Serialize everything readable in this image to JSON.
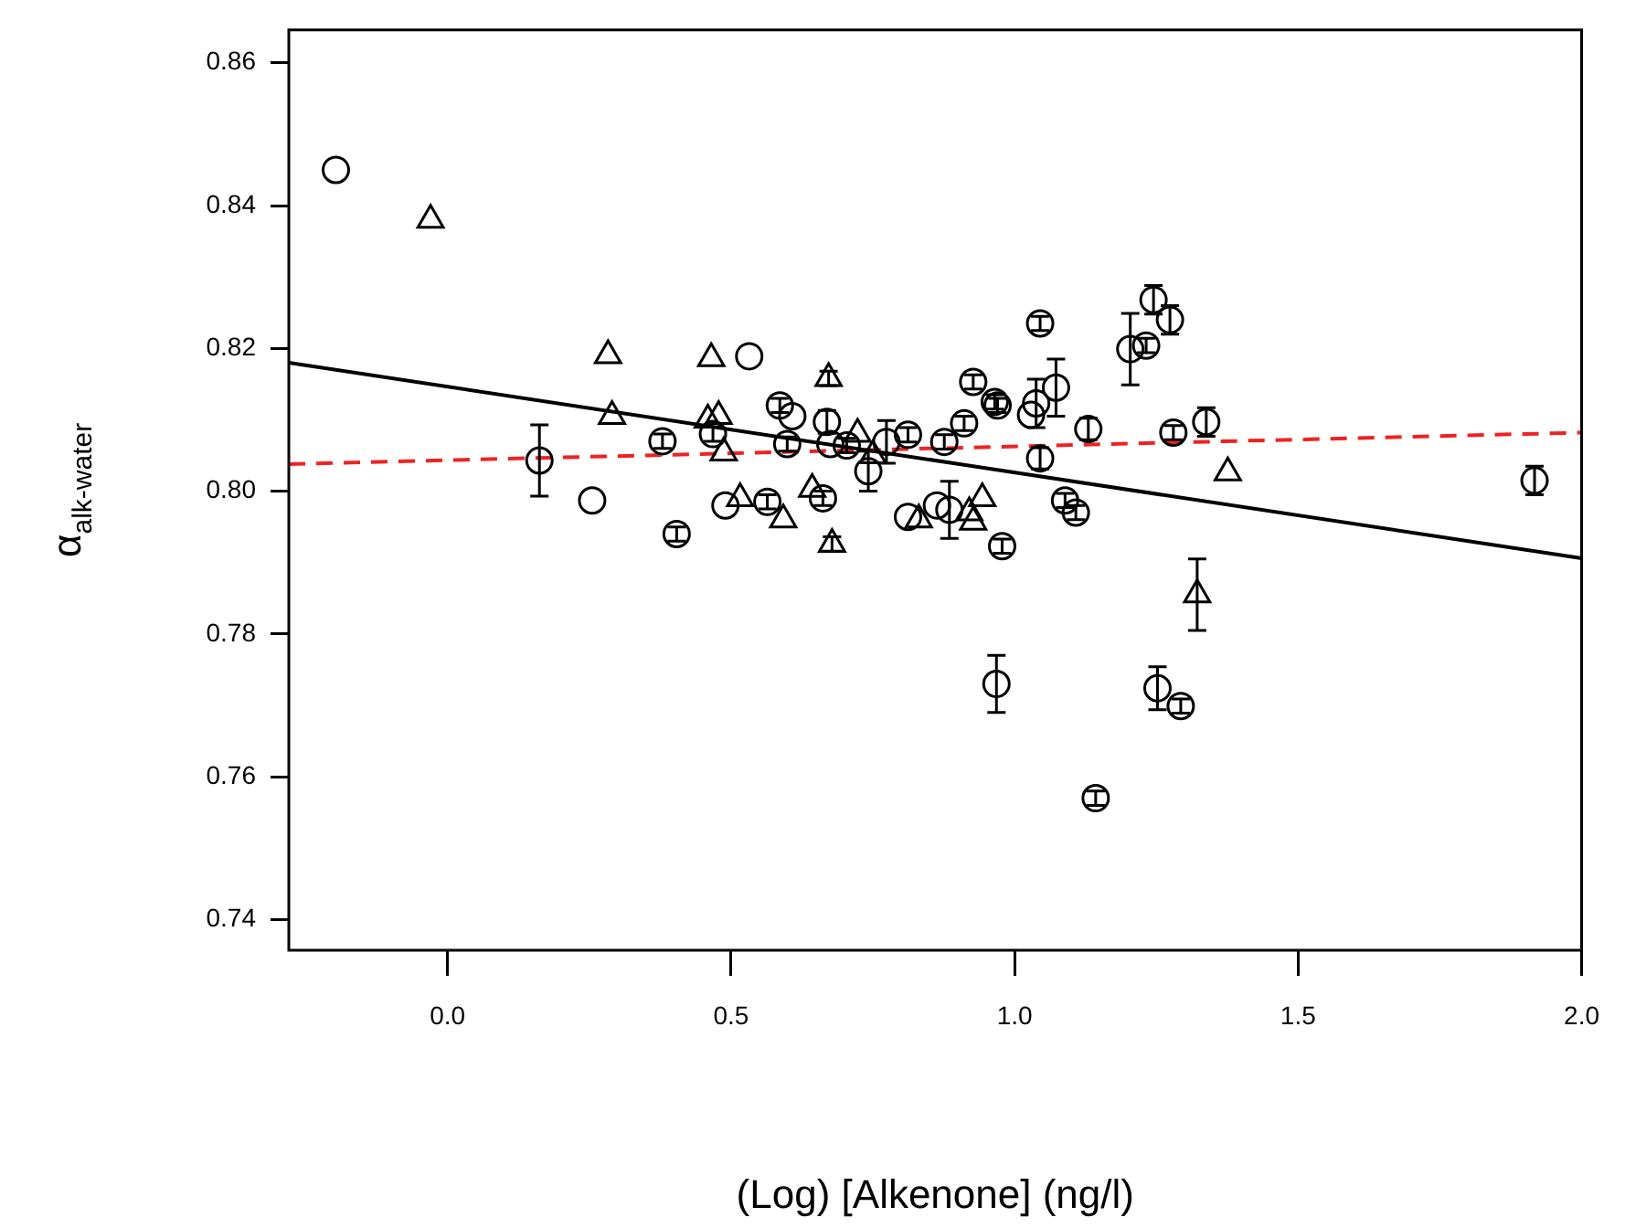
{
  "chart_data": {
    "type": "scatter",
    "xlabel": "(Log) [Alkenone] (ng/l)",
    "ylabel": "α$_{alk-water}$",
    "xlim": [
      -0.28,
      2.0
    ],
    "ylim": [
      0.7357,
      0.8646
    ],
    "xticks": [
      {
        "value": 0,
        "label": "0.0"
      },
      {
        "value": 0.5,
        "label": "0.5"
      },
      {
        "value": 1,
        "label": "1.0"
      },
      {
        "value": 1.5,
        "label": "1.5"
      },
      {
        "value": 2,
        "label": "2.0"
      }
    ],
    "yticks": [
      0.74,
      0.76,
      0.78,
      {
        "value": 0.8,
        "label": "0.80"
      },
      0.82,
      0.84,
      0.86
    ],
    "grid": false,
    "legend": false,
    "series": [
      {
        "type": "scatter",
        "marker": "circle",
        "color": "#000000",
        "x": [
          -0.197,
          0.162,
          0.255,
          0.379,
          0.404,
          0.532,
          0.468,
          0.49,
          0.564,
          0.586,
          0.608,
          0.599,
          0.662,
          0.669,
          0.675,
          0.704,
          0.742,
          0.774,
          0.812,
          0.876,
          0.911,
          0.927,
          0.965,
          0.97,
          1.045,
          1.038,
          1.029,
          1.073,
          1.13,
          1.204,
          1.045,
          0.812,
          0.863,
          0.885,
          0.978,
          1.089,
          1.108,
          1.245,
          1.274,
          1.232,
          1.28,
          1.338,
          0.968,
          1.252,
          1.293,
          1.143,
          1.917
        ],
        "values": [
          0.845,
          0.8043,
          0.7987,
          0.807,
          0.794,
          0.8189,
          0.808,
          0.798,
          0.7985,
          0.812,
          0.8105,
          0.8066,
          0.799,
          0.8097,
          0.8066,
          0.8064,
          0.8028,
          0.8069,
          0.8079,
          0.8069,
          0.8095,
          0.8153,
          0.8125,
          0.812,
          0.8235,
          0.8123,
          0.8107,
          0.8145,
          0.8087,
          0.8199,
          0.8046,
          0.7964,
          0.798,
          0.7974,
          0.7923,
          0.7987,
          0.797,
          0.8268,
          0.824,
          0.8204,
          0.8082,
          0.8097,
          0.773,
          0.7724,
          0.7699,
          0.757,
          0.8015
        ],
        "errors": [
          null,
          0.005,
          null,
          0.001,
          0.001,
          null,
          0.001,
          null,
          0.001,
          0.001,
          null,
          0.001,
          0.001,
          0.0016,
          null,
          0.001,
          0.0028,
          0.003,
          0.001,
          0.001,
          0.001,
          0.001,
          0.001,
          0.001,
          0.001,
          0.0034,
          null,
          0.004,
          0.0015,
          0.005,
          0.0015,
          null,
          null,
          0.004,
          0.001,
          0.001,
          0.001,
          0.002,
          0.002,
          0.001,
          0.001,
          0.002,
          0.004,
          0.003,
          0.001,
          0.001,
          0.002
        ]
      },
      {
        "type": "scatter",
        "marker": "triangle",
        "color": "#000000",
        "x": [
          -0.03,
          0.283,
          0.29,
          0.465,
          0.459,
          0.478,
          0.487,
          0.516,
          0.592,
          0.643,
          0.672,
          0.678,
          0.723,
          0.75,
          0.831,
          0.92,
          0.927,
          0.943,
          1.376,
          1.322
        ],
        "values": [
          0.838,
          0.819,
          0.8105,
          0.8186,
          0.81,
          0.8105,
          0.8054,
          0.799,
          0.796,
          0.8003,
          0.8158,
          0.7926,
          0.808,
          0.805,
          0.796,
          0.797,
          0.7957,
          0.799,
          0.8026,
          0.7855
        ],
        "errors": [
          null,
          null,
          null,
          null,
          null,
          null,
          null,
          null,
          null,
          null,
          0.001,
          0.001,
          null,
          null,
          null,
          null,
          null,
          null,
          null,
          0.005
        ]
      },
      {
        "type": "line",
        "marker": "none",
        "line_style": "solid",
        "color": "#000000",
        "x": [
          -0.28,
          2.0
        ],
        "values": [
          0.818,
          0.7906
        ]
      },
      {
        "type": "line",
        "marker": "none",
        "line_style": "dashed",
        "color": "#ee2222",
        "x": [
          -0.28,
          2.0
        ],
        "values": [
          0.8038,
          0.8082
        ]
      }
    ]
  }
}
